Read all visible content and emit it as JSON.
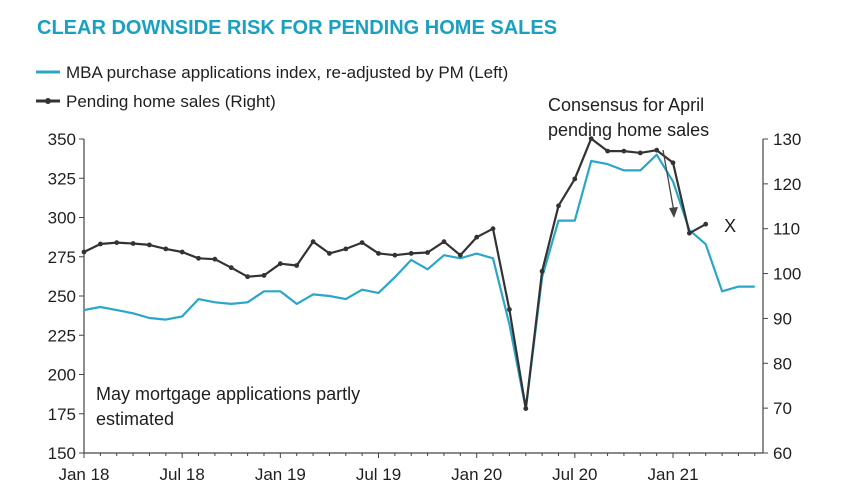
{
  "chart_data": {
    "type": "line",
    "title": "CLEAR DOWNSIDE RISK FOR PENDING HOME SALES",
    "xlabel": "",
    "ylabel_left": "",
    "ylabel_right": "",
    "x_ticks": [
      "Jan 18",
      "Jul 18",
      "Jan 19",
      "Jul 19",
      "Jan 20",
      "Jul 20",
      "Jan 21"
    ],
    "x_tick_months": [
      0,
      6,
      12,
      18,
      24,
      30,
      36
    ],
    "left_axis": {
      "ylim": [
        150,
        350
      ],
      "ticks": [
        150,
        175,
        200,
        225,
        250,
        275,
        300,
        325,
        350
      ]
    },
    "right_axis": {
      "ylim": [
        60,
        130
      ],
      "ticks": [
        60,
        70,
        80,
        90,
        100,
        110,
        120,
        130
      ]
    },
    "colors": {
      "mba": "#2ba6c8",
      "pending": "#333333",
      "axis": "#444444",
      "title": "#1aa0c0"
    },
    "series": [
      {
        "name": "MBA purchase applications index, re-adjusted by PM (Left)",
        "axis": "left",
        "style": "line",
        "x": [
          0,
          1,
          2,
          3,
          4,
          5,
          6,
          7,
          8,
          9,
          10,
          11,
          12,
          13,
          14,
          15,
          16,
          17,
          18,
          19,
          20,
          21,
          22,
          23,
          24,
          25,
          26,
          27,
          28,
          29,
          30,
          31,
          32,
          33,
          34,
          35,
          36,
          37,
          38,
          39,
          40,
          41
        ],
        "values": [
          241,
          243,
          241,
          239,
          236,
          235,
          237,
          248,
          246,
          245,
          246,
          253,
          253,
          245,
          251,
          250,
          248,
          254,
          252,
          262,
          273,
          267,
          276,
          274,
          277,
          274,
          232,
          178,
          262,
          298,
          298,
          336,
          334,
          330,
          330,
          340,
          323,
          292,
          283,
          253,
          256,
          256
        ]
      },
      {
        "name": "Pending home sales (Right)",
        "axis": "right",
        "style": "line-markers",
        "x": [
          0,
          1,
          2,
          3,
          4,
          5,
          6,
          7,
          8,
          9,
          10,
          11,
          12,
          13,
          14,
          15,
          16,
          17,
          18,
          19,
          20,
          21,
          22,
          23,
          24,
          25,
          26,
          27,
          28,
          29,
          30,
          31,
          32,
          33,
          34,
          35,
          36,
          37,
          38
        ],
        "values": [
          104.8,
          106.6,
          106.9,
          106.7,
          106.4,
          105.5,
          104.8,
          103.4,
          103.2,
          101.3,
          99.3,
          99.6,
          102.2,
          101.8,
          107.1,
          104.5,
          105.5,
          106.9,
          104.5,
          104.1,
          104.5,
          104.7,
          107.1,
          104.1,
          108.1,
          110.0,
          92.0,
          69.9,
          100.5,
          115.1,
          121.1,
          130.1,
          127.3,
          127.3,
          126.9,
          127.5,
          124.7,
          109.0,
          111.0
        ]
      }
    ],
    "consensus_point": {
      "x": 39,
      "value": 110.8,
      "marker": "X",
      "axis": "right"
    },
    "legend": [
      {
        "label": "MBA purchase applications index, re-adjusted by PM (Left)",
        "style": "line"
      },
      {
        "label": "Pending home sales (Right)",
        "style": "line-markers"
      }
    ],
    "annotations": [
      {
        "id": "consensus",
        "lines": [
          "Consensus for April",
          "pending home sales"
        ]
      },
      {
        "id": "may-note",
        "lines": [
          "May mortgage applications partly",
          "estimated"
        ]
      }
    ]
  }
}
